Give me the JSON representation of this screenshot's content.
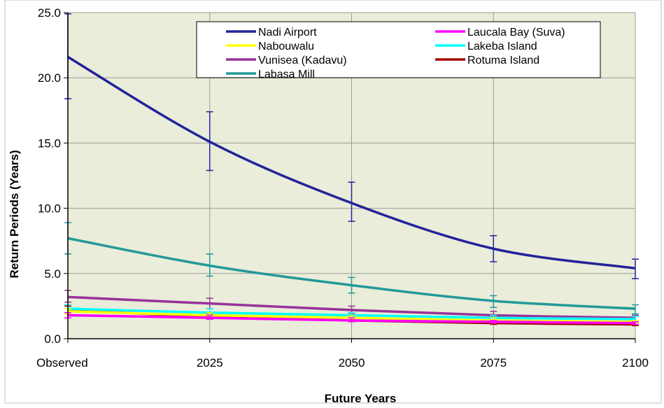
{
  "chart_data": {
    "type": "line",
    "title": "",
    "xlabel": "Future Years",
    "ylabel": "Return Periods (Years)",
    "categories": [
      "Observed",
      "2025",
      "2050",
      "2075",
      "2100"
    ],
    "ylim": [
      0,
      25
    ],
    "yticks": [
      "0.0",
      "5.0",
      "10.0",
      "15.0",
      "20.0",
      "25.0"
    ],
    "grid": true,
    "legend_position": "top",
    "plot_background": "#e9edd9",
    "series": [
      {
        "name": "Nadi Airport",
        "color": "#23239b",
        "values": [
          21.6,
          15.1,
          10.4,
          6.9,
          5.4
        ],
        "err_low": [
          18.4,
          12.9,
          9.0,
          5.9,
          4.6
        ],
        "err_high": [
          24.9,
          17.4,
          12.0,
          7.9,
          6.1
        ]
      },
      {
        "name": "Laucala Bay (Suva)",
        "color": "#ff00ff",
        "values": [
          1.8,
          1.6,
          1.4,
          1.3,
          1.2
        ],
        "err_low": [
          1.6,
          1.5,
          1.3,
          1.2,
          1.1
        ],
        "err_high": [
          2.0,
          1.8,
          1.6,
          1.4,
          1.3
        ]
      },
      {
        "name": "Nabouwalu",
        "color": "#ffff00",
        "values": [
          2.1,
          1.8,
          1.6,
          1.4,
          1.3
        ],
        "err_low": [
          1.9,
          1.6,
          1.4,
          1.3,
          1.2
        ],
        "err_high": [
          2.3,
          2.0,
          1.8,
          1.6,
          1.4
        ]
      },
      {
        "name": "Lakeba Island",
        "color": "#00ffff",
        "values": [
          2.3,
          2.0,
          1.8,
          1.6,
          1.5
        ],
        "err_low": [
          2.0,
          1.8,
          1.6,
          1.4,
          1.3
        ],
        "err_high": [
          2.6,
          2.3,
          2.0,
          1.8,
          1.7
        ]
      },
      {
        "name": "Vunisea (Kadavu)",
        "color": "#993399",
        "values": [
          3.2,
          2.7,
          2.2,
          1.8,
          1.6
        ],
        "err_low": [
          2.8,
          2.3,
          1.9,
          1.6,
          1.4
        ],
        "err_high": [
          3.7,
          3.1,
          2.5,
          2.1,
          1.8
        ]
      },
      {
        "name": "Rotuma Island",
        "color": "#a00000",
        "values": [
          2.2,
          1.7,
          1.4,
          1.2,
          1.1
        ],
        "err_low": [
          2.0,
          1.5,
          1.3,
          1.1,
          1.0
        ],
        "err_high": [
          2.5,
          1.9,
          1.6,
          1.4,
          1.2
        ]
      },
      {
        "name": "Labasa Mill",
        "color": "#229999",
        "values": [
          7.7,
          5.6,
          4.1,
          2.9,
          2.3
        ],
        "err_low": [
          6.5,
          4.8,
          3.5,
          2.4,
          1.9
        ],
        "err_high": [
          8.9,
          6.5,
          4.7,
          3.3,
          2.6
        ]
      }
    ]
  }
}
